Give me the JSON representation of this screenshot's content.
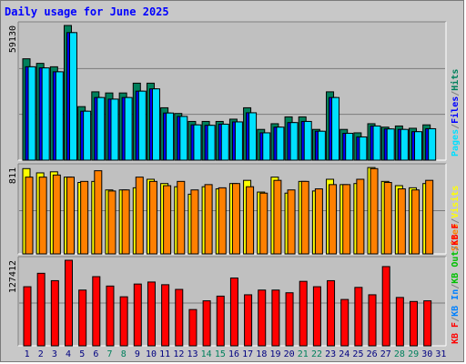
{
  "title": "Daily usage for June 2025",
  "colors": {
    "hits": "#00805c",
    "files": "#0000ff",
    "pages": "#00e0ff",
    "visits": "#ffff00",
    "sites": "#ff8000",
    "kb_in": "#0080ff",
    "kb_out": "#00c000",
    "kb_f": "#ff0000",
    "title": "#0000ff",
    "panel_bg": "#c0c0c0",
    "frame_bg": "#c8c8c8"
  },
  "chart_data": [
    {
      "type": "bar",
      "panel": "hits-files-pages",
      "scale_label": "59130",
      "ylim": [
        0,
        59130
      ],
      "legend": [
        {
          "text": "Pages",
          "color": "#00e0ff"
        },
        {
          "text": "/",
          "color": "#808080"
        },
        {
          "text": "Files",
          "color": "#0000ff"
        },
        {
          "text": "/",
          "color": "#808080"
        },
        {
          "text": "Hits",
          "color": "#00805c"
        }
      ],
      "days": [
        "1",
        "2",
        "3",
        "4",
        "5",
        "6",
        "7",
        "8",
        "9",
        "10",
        "11",
        "12",
        "13",
        "14",
        "15",
        "16",
        "17",
        "18",
        "19",
        "20",
        "21",
        "22",
        "23",
        "24",
        "25",
        "26",
        "27",
        "28",
        "29",
        "30",
        "31"
      ],
      "series": [
        {
          "name": "Hits",
          "key": "hits",
          "values": [
            44500,
            42500,
            41000,
            59130,
            23500,
            30000,
            29500,
            29500,
            33800,
            33800,
            23000,
            20500,
            17000,
            17000,
            17000,
            18000,
            23000,
            13500,
            16000,
            19000,
            19000,
            13500,
            30000,
            13500,
            12000,
            16000,
            14500,
            15000,
            14000,
            15500,
            null
          ]
        },
        {
          "name": "Files",
          "key": "files",
          "values": [
            41000,
            40500,
            38800,
            56000,
            21500,
            27500,
            26800,
            27500,
            30300,
            31300,
            20700,
            19200,
            15500,
            15300,
            15800,
            16800,
            20800,
            12000,
            14500,
            16500,
            17000,
            12700,
            27500,
            11800,
            10200,
            15000,
            13700,
            13500,
            12500,
            13800,
            null
          ]
        },
        {
          "name": "Pages",
          "key": "pages",
          "values": [
            41000,
            40500,
            38800,
            56000,
            21500,
            27500,
            26800,
            27500,
            30300,
            31300,
            20700,
            19200,
            15500,
            15300,
            15800,
            16800,
            20800,
            12000,
            14500,
            16500,
            17000,
            12700,
            27500,
            11800,
            10200,
            15000,
            13700,
            13500,
            12500,
            13800,
            null
          ]
        }
      ]
    },
    {
      "type": "bar",
      "panel": "visits-sites",
      "scale_label": "811",
      "ylim": [
        0,
        811
      ],
      "legend": [
        {
          "text": "Sites",
          "color": "#ff8000"
        },
        {
          "text": "/",
          "color": "#808080"
        },
        {
          "text": "Visits",
          "color": "#ffff00"
        }
      ],
      "series": [
        {
          "name": "Visits",
          "key": "visits",
          "values": [
            800,
            760,
            770,
            720,
            670,
            680,
            600,
            600,
            620,
            700,
            660,
            630,
            560,
            630,
            610,
            660,
            690,
            580,
            720,
            570,
            680,
            590,
            700,
            650,
            660,
            810,
            680,
            640,
            620,
            660,
            null
          ]
        },
        {
          "name": "Sites",
          "key": "sites",
          "values": [
            720,
            720,
            740,
            720,
            680,
            780,
            590,
            600,
            720,
            680,
            640,
            680,
            600,
            650,
            620,
            660,
            630,
            570,
            690,
            600,
            680,
            610,
            650,
            650,
            700,
            800,
            670,
            610,
            600,
            690,
            null
          ]
        }
      ]
    },
    {
      "type": "bar",
      "panel": "kbytes",
      "scale_label": "127412",
      "ylim": [
        0,
        127412
      ],
      "legend": [
        {
          "text": "KB F",
          "color": "#ff0000"
        },
        {
          "text": "/",
          "color": "#808080"
        },
        {
          "text": "KB In",
          "color": "#0080ff"
        },
        {
          "text": "/",
          "color": "#808080"
        },
        {
          "text": "KB Out",
          "color": "#00c000"
        },
        {
          "text": "/",
          "color": "#808080"
        },
        {
          "text": "KB F",
          "color": "#ff0000"
        }
      ],
      "series": [
        {
          "name": "KB F",
          "key": "kbf",
          "values": [
            88000,
            108000,
            97000,
            127412,
            83000,
            103000,
            89000,
            73000,
            92000,
            95000,
            91000,
            84000,
            54000,
            67000,
            74000,
            101000,
            76000,
            83000,
            83000,
            79000,
            96000,
            88000,
            97000,
            69000,
            87000,
            76000,
            118000,
            72000,
            66000,
            67000,
            null
          ]
        }
      ]
    }
  ],
  "x_axis": {
    "labels": [
      "1",
      "2",
      "3",
      "4",
      "5",
      "6",
      "7",
      "8",
      "9",
      "10",
      "11",
      "12",
      "13",
      "14",
      "15",
      "16",
      "17",
      "18",
      "19",
      "20",
      "21",
      "22",
      "23",
      "24",
      "25",
      "26",
      "27",
      "28",
      "29",
      "30",
      "31"
    ],
    "weekend": [
      false,
      false,
      false,
      false,
      false,
      false,
      true,
      true,
      false,
      false,
      false,
      false,
      false,
      true,
      true,
      false,
      false,
      false,
      false,
      false,
      true,
      true,
      false,
      false,
      false,
      false,
      false,
      true,
      true,
      false,
      false
    ],
    "weekday_color": "#000080",
    "weekend_color": "#00805c"
  }
}
